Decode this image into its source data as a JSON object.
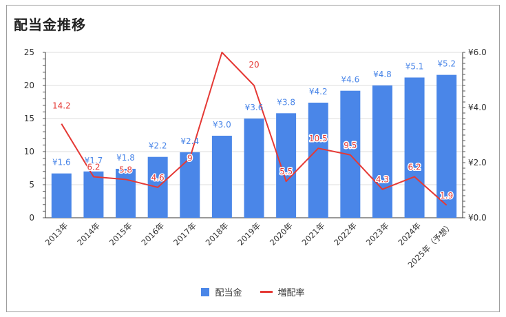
{
  "chart_data": {
    "type": "bar",
    "title": "配当金推移",
    "categories": [
      "2013年",
      "2014年",
      "2015年",
      "2016年",
      "2017年",
      "2018年",
      "2019年",
      "2020年",
      "2021年",
      "2022年",
      "2023年",
      "2024年",
      "2025年（予想）"
    ],
    "series": [
      {
        "name": "配当金",
        "type": "bar",
        "axis": "left",
        "values": [
          6.7,
          7.0,
          7.4,
          9.2,
          9.9,
          12.4,
          15.0,
          15.8,
          17.4,
          19.2,
          20.0,
          21.2,
          21.6
        ],
        "labels": [
          "¥1.6",
          "¥1.7",
          "¥1.8",
          "¥2.2",
          "¥2.4",
          "¥3.0",
          "¥3.6",
          "¥3.8",
          "¥4.2",
          "¥4.6",
          "¥4.8",
          "¥5.1",
          "¥5.2"
        ]
      },
      {
        "name": "増配率",
        "type": "line",
        "axis": "left",
        "values": [
          14.2,
          6.2,
          5.8,
          4.6,
          9.0,
          25.0,
          20.0,
          5.5,
          10.5,
          9.5,
          4.3,
          6.2,
          1.9
        ],
        "labels": [
          "14.2",
          "6.2",
          "5.8",
          "4.6",
          "9",
          "",
          "20",
          "5.5",
          "10.5",
          "9.5",
          "4.3",
          "6.2",
          "1.9"
        ]
      }
    ],
    "y_left": {
      "ticks": [
        "0",
        "5",
        "10",
        "15",
        "20",
        "25"
      ],
      "ylim": [
        0,
        25
      ]
    },
    "y_right": {
      "ticks": [
        "¥0.0",
        "¥2.0",
        "¥4.0",
        "¥6.0"
      ],
      "ylim": [
        0,
        6
      ]
    },
    "grid": true,
    "legend": "bottom",
    "colors": {
      "bar": "#4a86e8",
      "line": "#e53935"
    }
  }
}
